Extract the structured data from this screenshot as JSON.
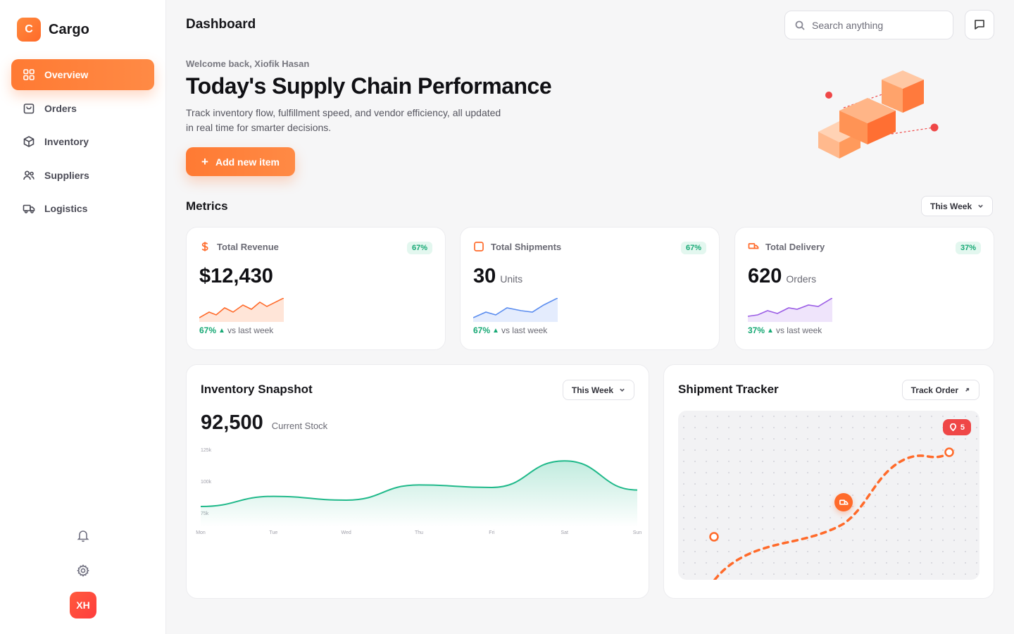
{
  "brand": {
    "logo_letter": "C",
    "name": "Cargo"
  },
  "sidebar": {
    "items": [
      {
        "label": "Overview",
        "icon": "grid-icon",
        "active": true
      },
      {
        "label": "Orders",
        "icon": "bag-icon"
      },
      {
        "label": "Inventory",
        "icon": "box-icon"
      },
      {
        "label": "Suppliers",
        "icon": "users-icon"
      },
      {
        "label": "Logistics",
        "icon": "truck-icon"
      }
    ],
    "avatar_initials": "XH"
  },
  "header": {
    "title": "Dashboard",
    "search_placeholder": "Search anything"
  },
  "hero": {
    "welcome": "Welcome back, Xiofik Hasan",
    "title": "Today's Supply Chain Performance",
    "description": "Track inventory flow, fulfillment speed, and vendor efficiency, all updated in real time for smarter decisions.",
    "add_button": "Add new item"
  },
  "metrics": {
    "title": "Metrics",
    "period": "This Week",
    "cards": [
      {
        "label": "Total Revenue",
        "badge": "67%",
        "value": "$12,430",
        "unit": "",
        "change": "67%",
        "change_text": "vs last week",
        "color": "#ff6a2a"
      },
      {
        "label": "Total Shipments",
        "badge": "67%",
        "value": "30",
        "unit": "Units",
        "change": "67%",
        "change_text": "vs last week",
        "color": "#5b8def"
      },
      {
        "label": "Total Delivery",
        "badge": "37%",
        "value": "620",
        "unit": "Orders",
        "change": "37%",
        "change_text": "vs last week",
        "color": "#9b5de5"
      }
    ]
  },
  "inventory": {
    "title": "Inventory Snapshot",
    "period": "This Week",
    "value": "92,500",
    "value_label": "Current Stock",
    "chart_data": {
      "type": "area",
      "x": [
        "Mon",
        "Tue",
        "Wed",
        "Thu",
        "Fri",
        "Sat",
        "Sun"
      ],
      "y_ticks": [
        "125k",
        "100k",
        "75k"
      ],
      "values": [
        80,
        88,
        85,
        97,
        95,
        116,
        93
      ],
      "ylim": [
        75,
        125
      ],
      "color": "#20b98a"
    }
  },
  "tracker": {
    "title": "Shipment Tracker",
    "button": "Track Order",
    "badge_count": "5"
  }
}
